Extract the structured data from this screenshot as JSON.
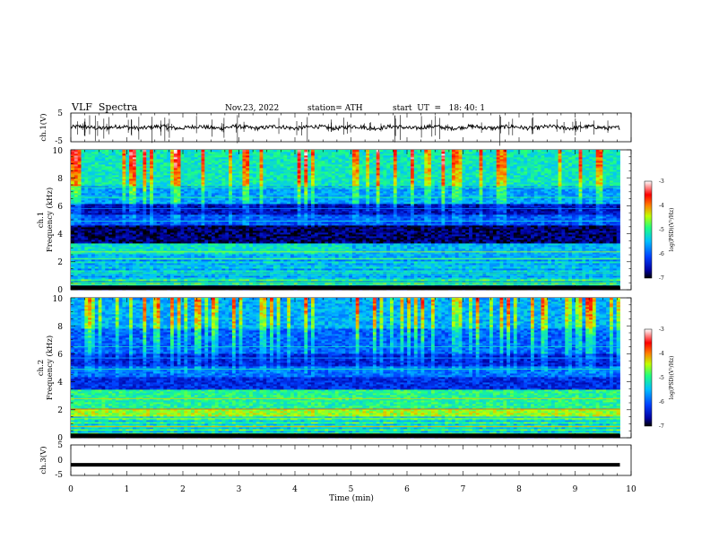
{
  "header": {
    "title": "VLF  Spectra",
    "date": "Nov.23, 2022",
    "station": "station= ATH",
    "start": "start  UT  =   18: 40: 1"
  },
  "chart_data": [
    {
      "type": "line",
      "panel": "ch.1",
      "ylabel": "ch.1(V)",
      "ylim": [
        -5,
        5
      ],
      "yticks": [
        "5",
        "-5"
      ],
      "xlim": [
        0,
        10
      ],
      "description_of_signal": "noisy trace near 0 V with spikes"
    },
    {
      "type": "heatmap",
      "panel": "ch.1 spectrogram",
      "ylabel_lines": [
        "ch.1",
        "Frequency  (kHz)"
      ],
      "ylim": [
        0,
        10
      ],
      "yticks": [
        "0",
        "2",
        "4",
        "6",
        "8",
        "10"
      ],
      "xlim": [
        0,
        10
      ],
      "data_end_min": 9.8,
      "colorbar": {
        "label": "log(PSD)(V²/Hz)",
        "ticks": [
          "-3",
          "-4",
          "-5",
          "-6",
          "-7"
        ],
        "range": [
          -7,
          -3
        ]
      }
    },
    {
      "type": "heatmap",
      "panel": "ch.2 spectrogram",
      "ylabel_lines": [
        "ch.2",
        "Frequency  (kHz)"
      ],
      "ylim": [
        0,
        10
      ],
      "yticks": [
        "0",
        "2",
        "4",
        "6",
        "8",
        "10"
      ],
      "xlim": [
        0,
        10
      ],
      "data_end_min": 9.8,
      "colorbar": {
        "label": "log(PSD)(V²/Hz)",
        "ticks": [
          "-3",
          "-4",
          "-5",
          "-6",
          "-7"
        ],
        "range": [
          -7,
          -3
        ]
      }
    },
    {
      "type": "line",
      "panel": "ch.3",
      "ylabel": "ch.3(V)",
      "ylim": [
        -5,
        5
      ],
      "yticks": [
        "5",
        "0",
        "-5"
      ],
      "xlim": [
        0,
        10
      ],
      "constant_value": -1.5
    }
  ],
  "xaxis": {
    "label": "Time  (min)",
    "ticks": [
      "0",
      "1",
      "2",
      "3",
      "4",
      "5",
      "6",
      "7",
      "8",
      "9",
      "10"
    ]
  },
  "colors": {
    "colormap": [
      "#000000",
      "#0000a0",
      "#0040ff",
      "#00c0ff",
      "#20ff80",
      "#c0ff00",
      "#ff8000",
      "#ff0000",
      "#ffffff"
    ]
  }
}
